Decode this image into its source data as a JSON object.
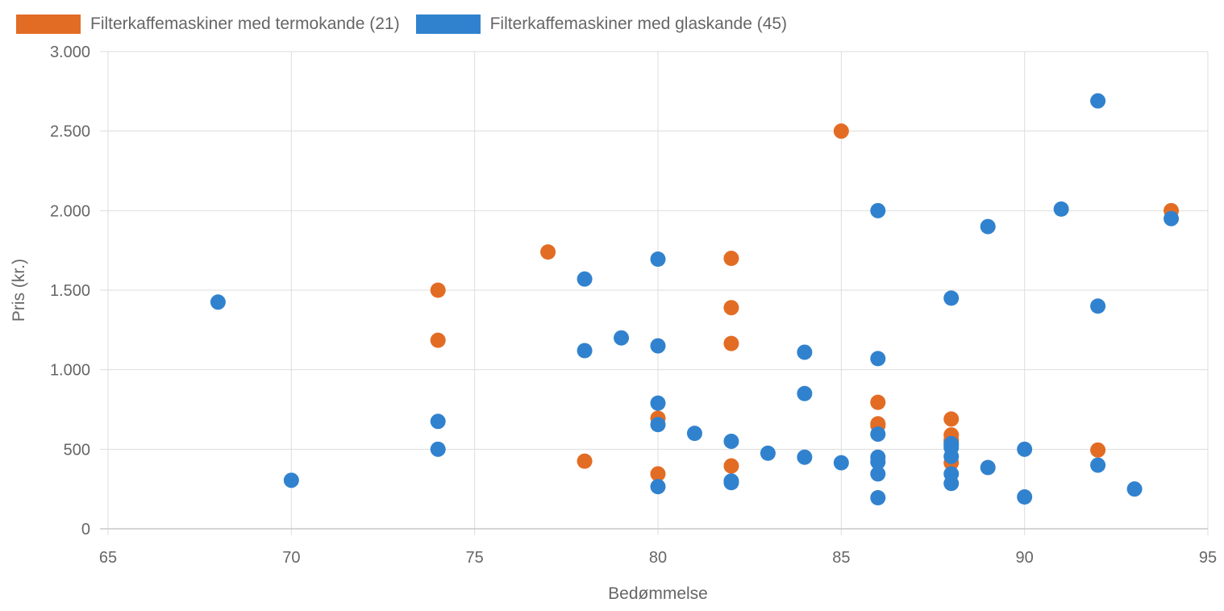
{
  "legend": {
    "items": [
      {
        "label": "Filterkaffemaskiner med termokande (21)",
        "color": "#e36c24"
      },
      {
        "label": "Filterkaffemaskiner med glaskande (45)",
        "color": "#3182ce"
      }
    ]
  },
  "chart_data": {
    "type": "scatter",
    "xlabel": "Bedømmelse",
    "ylabel": "Pris (kr.)",
    "xlim": [
      65,
      95
    ],
    "ylim": [
      0,
      3000
    ],
    "x_ticks": [
      65,
      70,
      75,
      80,
      85,
      90,
      95
    ],
    "y_ticks": [
      0,
      500,
      1000,
      1500,
      2000,
      2500,
      3000
    ],
    "y_tick_labels": [
      "0",
      "500",
      "1.000",
      "1.500",
      "2.000",
      "2.500",
      "3.000"
    ],
    "grid": true,
    "legend_position": "top-left",
    "series": [
      {
        "name": "Filterkaffemaskiner med termokande (21)",
        "color": "#e36c24",
        "points": [
          [
            74,
            1500
          ],
          [
            74,
            1185
          ],
          [
            77,
            1740
          ],
          [
            78,
            425
          ],
          [
            80,
            695
          ],
          [
            80,
            345
          ],
          [
            82,
            1700
          ],
          [
            82,
            1390
          ],
          [
            82,
            1165
          ],
          [
            82,
            395
          ],
          [
            85,
            2500
          ],
          [
            86,
            795
          ],
          [
            86,
            660
          ],
          [
            88,
            690
          ],
          [
            88,
            590
          ],
          [
            88,
            560
          ],
          [
            88,
            415
          ],
          [
            92,
            495
          ],
          [
            94,
            2000
          ],
          [
            88,
            550
          ],
          [
            86,
            650
          ]
        ]
      },
      {
        "name": "Filterkaffemaskiner med glaskande (45)",
        "color": "#3182ce",
        "points": [
          [
            68,
            1425
          ],
          [
            70,
            305
          ],
          [
            74,
            675
          ],
          [
            74,
            500
          ],
          [
            78,
            1570
          ],
          [
            78,
            1120
          ],
          [
            79,
            1200
          ],
          [
            80,
            1695
          ],
          [
            80,
            1150
          ],
          [
            80,
            790
          ],
          [
            80,
            655
          ],
          [
            80,
            265
          ],
          [
            81,
            600
          ],
          [
            82,
            550
          ],
          [
            82,
            300
          ],
          [
            83,
            475
          ],
          [
            84,
            1110
          ],
          [
            84,
            850
          ],
          [
            84,
            450
          ],
          [
            85,
            415
          ],
          [
            86,
            2000
          ],
          [
            86,
            1070
          ],
          [
            86,
            595
          ],
          [
            86,
            450
          ],
          [
            86,
            345
          ],
          [
            86,
            195
          ],
          [
            88,
            1450
          ],
          [
            88,
            535
          ],
          [
            88,
            455
          ],
          [
            88,
            345
          ],
          [
            88,
            285
          ],
          [
            89,
            1900
          ],
          [
            89,
            385
          ],
          [
            90,
            500
          ],
          [
            90,
            200
          ],
          [
            91,
            2010
          ],
          [
            92,
            2690
          ],
          [
            92,
            1400
          ],
          [
            92,
            400
          ],
          [
            93,
            250
          ],
          [
            94,
            1950
          ],
          [
            88,
            525
          ],
          [
            88,
            510
          ],
          [
            86,
            420
          ],
          [
            82,
            290
          ]
        ]
      }
    ]
  }
}
